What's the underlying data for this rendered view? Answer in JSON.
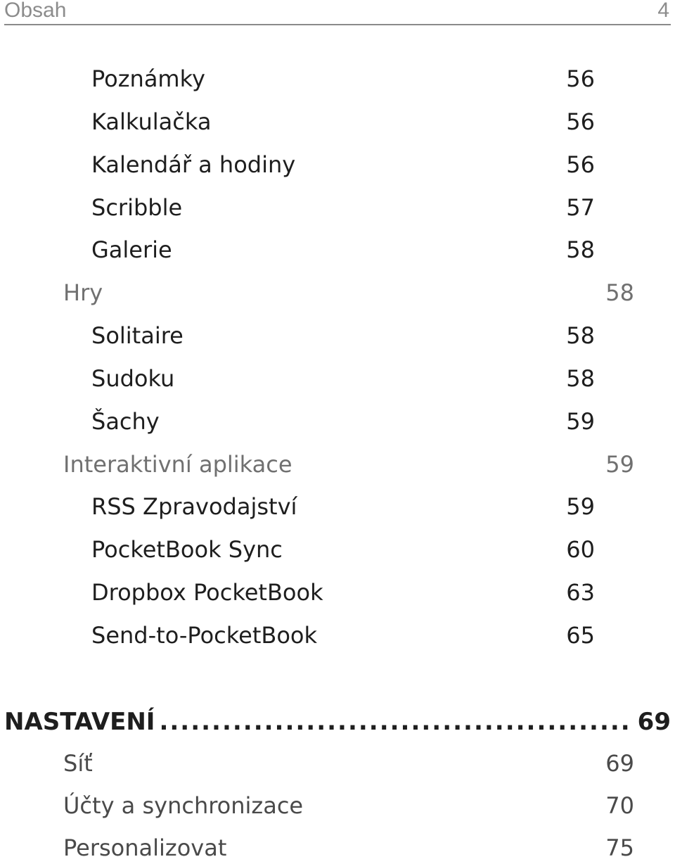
{
  "header": {
    "title": "Obsah",
    "page_number": "4"
  },
  "entries": [
    {
      "label": "Poznámky",
      "page": "56"
    },
    {
      "label": "Kalkulačka",
      "page": "56"
    },
    {
      "label": "Kalendář a hodiny",
      "page": "56"
    },
    {
      "label": "Scribble",
      "page": "57"
    },
    {
      "label": "Galerie",
      "page": "58"
    },
    {
      "label": "Hry",
      "page": "58"
    },
    {
      "label": "Solitaire",
      "page": "58"
    },
    {
      "label": "Sudoku",
      "page": "58"
    },
    {
      "label": "Šachy",
      "page": "59"
    },
    {
      "label": "Interaktivní aplikace",
      "page": "59"
    },
    {
      "label": "RSS Zpravodajství",
      "page": "59"
    },
    {
      "label": "PocketBook Sync",
      "page": "60"
    },
    {
      "label": "Dropbox PocketBook",
      "page": "63"
    },
    {
      "label": "Send-to-PocketBook",
      "page": "65"
    }
  ],
  "chapter": {
    "label": "NASTAVENÍ",
    "dots": "..........................................................................",
    "page": "69"
  },
  "chapter_entries": [
    {
      "label": "Síť",
      "page": "69"
    },
    {
      "label": "Účty a synchronizace",
      "page": "70"
    },
    {
      "label": "Personalizovat",
      "page": "75"
    }
  ]
}
